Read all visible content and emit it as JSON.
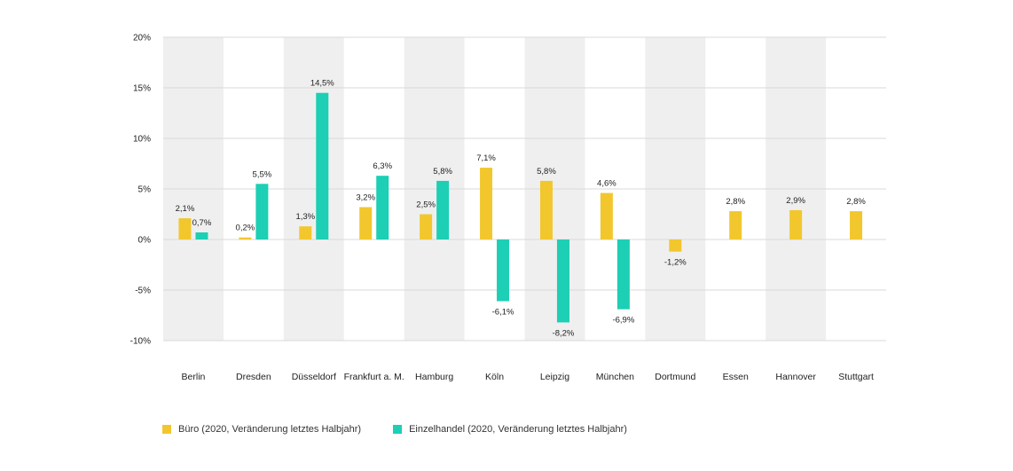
{
  "chart_data": {
    "type": "bar",
    "categories": [
      "Berlin",
      "Dresden",
      "Düsseldorf",
      "Frankfurt a. M.",
      "Hamburg",
      "Köln",
      "Leipzig",
      "München",
      "Dortmund",
      "Essen",
      "Hannover",
      "Stuttgart"
    ],
    "series": [
      {
        "name": "Büro (2020, Veränderung letztes Halbjahr)",
        "color": "#f2c72e",
        "values": [
          2.1,
          0.2,
          1.3,
          3.2,
          2.5,
          7.1,
          5.8,
          4.6,
          -1.2,
          2.8,
          2.9,
          2.8
        ],
        "labels": [
          "2,1%",
          "0,2%",
          "1,3%",
          "3,2%",
          "2,5%",
          "7,1%",
          "5,8%",
          "4,6%",
          "-1,2%",
          "2,8%",
          "2,9%",
          "2,8%"
        ]
      },
      {
        "name": "Einzelhandel (2020, Veränderung letztes Halbjahr)",
        "color": "#1dcfb4",
        "values": [
          0.7,
          5.5,
          14.5,
          6.3,
          5.8,
          -6.1,
          -8.2,
          -6.9,
          null,
          null,
          null,
          null
        ],
        "labels": [
          "0,7%",
          "5,5%",
          "14,5%",
          "6,3%",
          "5,8%",
          "-6,1%",
          "-8,2%",
          "-6,9%",
          null,
          null,
          null,
          null
        ]
      }
    ],
    "ylim": [
      -10,
      20
    ],
    "yticks": [
      20,
      15,
      10,
      5,
      0,
      -5,
      -10
    ],
    "ytick_labels": [
      "20%",
      "15%",
      "10%",
      "5%",
      "0%",
      "-5%",
      "-10%"
    ],
    "title": "",
    "xlabel": "",
    "ylabel": "",
    "grid": true,
    "legend_position": "bottom-left"
  }
}
